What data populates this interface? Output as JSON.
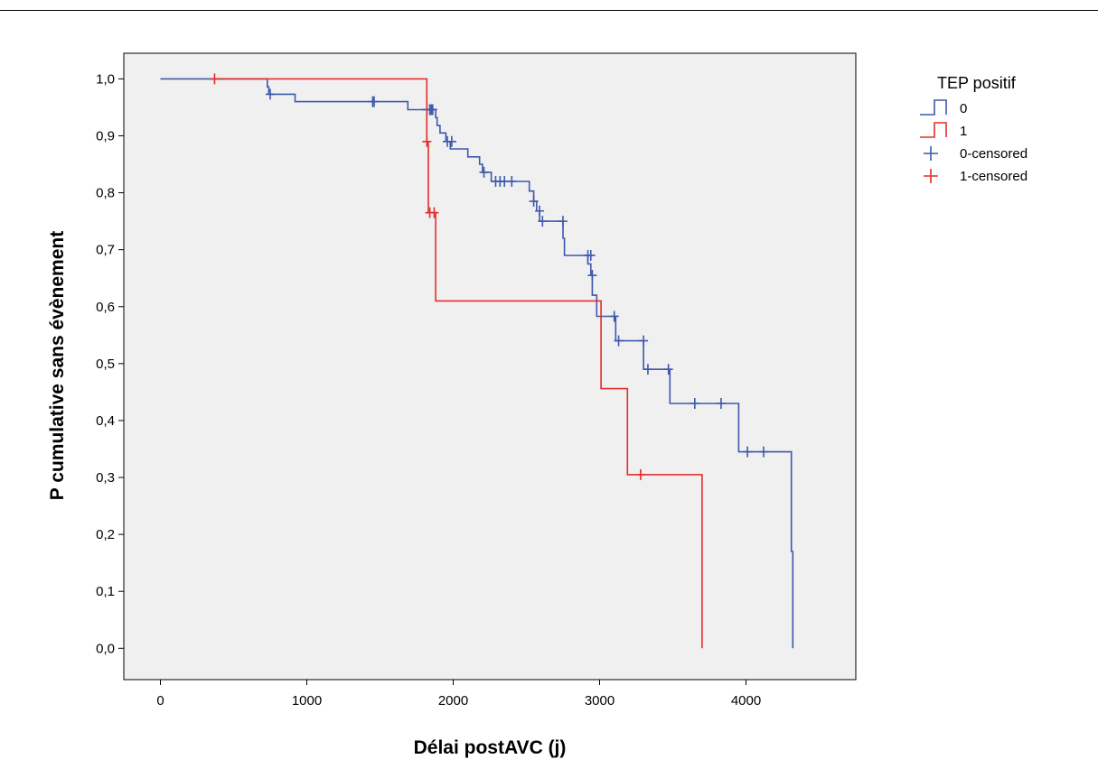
{
  "chart_data": {
    "type": "line",
    "subtype": "kaplan-meier survival (step)",
    "xlabel": "Délai postAVC (j)",
    "ylabel": "P cumulative sans évènement",
    "xlim": [
      -250,
      4750
    ],
    "ylim": [
      -0.055,
      1.045
    ],
    "x_ticks": [
      0,
      1000,
      2000,
      3000,
      4000
    ],
    "x_tick_labels": [
      "0",
      "1000",
      "2000",
      "3000",
      "4000"
    ],
    "y_ticks": [
      0.0,
      0.1,
      0.2,
      0.3,
      0.4,
      0.5,
      0.6,
      0.7,
      0.8,
      0.9,
      1.0
    ],
    "y_tick_labels": [
      "0,0",
      "0,1",
      "0,2",
      "0,3",
      "0,4",
      "0,5",
      "0,6",
      "0,7",
      "0,8",
      "0,9",
      "1,0"
    ],
    "grid": false,
    "plot_background": "#f0f0f0",
    "legend_title": "TEP positif",
    "legend_position": "top-right, outside plot",
    "legend_entries": [
      {
        "label": "0",
        "kind": "step-line",
        "color": "#3e58ac"
      },
      {
        "label": "1",
        "kind": "step-line",
        "color": "#e52c2c"
      },
      {
        "label": "0-censored",
        "kind": "censor-mark",
        "color": "#3e58ac"
      },
      {
        "label": "1-censored",
        "kind": "censor-mark",
        "color": "#e52c2c"
      }
    ],
    "series": [
      {
        "name": "0",
        "color": "#3e58ac",
        "steps": [
          [
            0,
            1.0
          ],
          [
            730,
            0.986
          ],
          [
            740,
            0.973
          ],
          [
            920,
            0.96
          ],
          [
            1690,
            0.946
          ],
          [
            1880,
            0.932
          ],
          [
            1890,
            0.918
          ],
          [
            1910,
            0.905
          ],
          [
            1950,
            0.89
          ],
          [
            1980,
            0.877
          ],
          [
            2100,
            0.863
          ],
          [
            2180,
            0.85
          ],
          [
            2200,
            0.836
          ],
          [
            2260,
            0.82
          ],
          [
            2520,
            0.803
          ],
          [
            2550,
            0.785
          ],
          [
            2570,
            0.768
          ],
          [
            2590,
            0.75
          ],
          [
            2750,
            0.72
          ],
          [
            2760,
            0.69
          ],
          [
            2920,
            0.675
          ],
          [
            2940,
            0.655
          ],
          [
            2950,
            0.62
          ],
          [
            2980,
            0.583
          ],
          [
            3110,
            0.54
          ],
          [
            3300,
            0.49
          ],
          [
            3480,
            0.43
          ],
          [
            3950,
            0.345
          ],
          [
            4310,
            0.17
          ],
          [
            4320,
            0.0
          ]
        ],
        "end_x": 4320,
        "censored": [
          [
            750,
            0.973
          ],
          [
            1450,
            0.96
          ],
          [
            1460,
            0.96
          ],
          [
            1820,
            0.946
          ],
          [
            1840,
            0.946
          ],
          [
            1850,
            0.946
          ],
          [
            1860,
            0.946
          ],
          [
            1960,
            0.89
          ],
          [
            1990,
            0.89
          ],
          [
            2210,
            0.836
          ],
          [
            2290,
            0.82
          ],
          [
            2320,
            0.82
          ],
          [
            2350,
            0.82
          ],
          [
            2400,
            0.82
          ],
          [
            2550,
            0.785
          ],
          [
            2590,
            0.768
          ],
          [
            2610,
            0.75
          ],
          [
            2750,
            0.75
          ],
          [
            2920,
            0.69
          ],
          [
            2940,
            0.69
          ],
          [
            2950,
            0.655
          ],
          [
            3100,
            0.583
          ],
          [
            3130,
            0.54
          ],
          [
            3300,
            0.54
          ],
          [
            3330,
            0.49
          ],
          [
            3470,
            0.49
          ],
          [
            3650,
            0.43
          ],
          [
            3830,
            0.43
          ],
          [
            4010,
            0.345
          ],
          [
            4120,
            0.345
          ]
        ]
      },
      {
        "name": "1",
        "color": "#e52c2c",
        "steps": [
          [
            360,
            1.0
          ],
          [
            1820,
            0.89
          ],
          [
            1830,
            0.765
          ],
          [
            1880,
            0.61
          ],
          [
            3010,
            0.456
          ],
          [
            3190,
            0.305
          ],
          [
            3700,
            0.0
          ]
        ],
        "end_x": 3700,
        "censored": [
          [
            370,
            1.0
          ],
          [
            1820,
            0.89
          ],
          [
            1840,
            0.765
          ],
          [
            1870,
            0.765
          ],
          [
            3280,
            0.305
          ]
        ]
      }
    ]
  }
}
